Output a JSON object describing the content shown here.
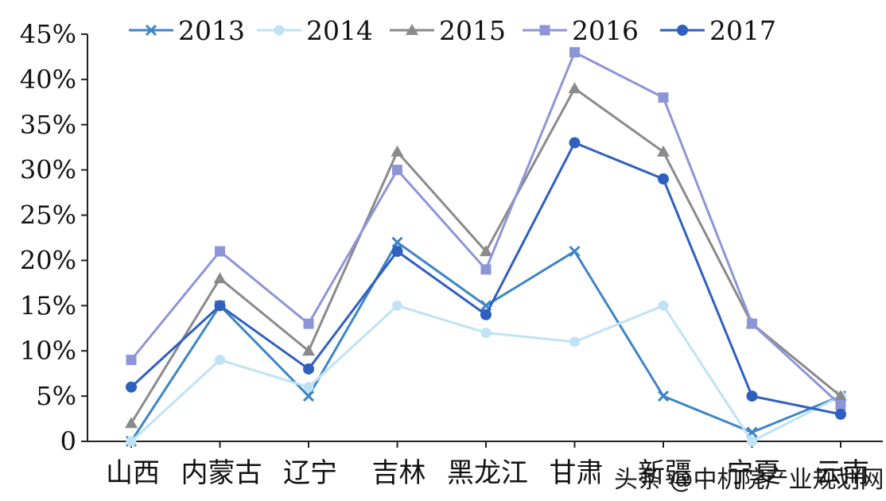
{
  "chart_data": {
    "type": "line",
    "categories": [
      "山西",
      "内蒙古",
      "辽宁",
      "吉林",
      "黑龙江",
      "甘肃",
      "新疆",
      "宁夏",
      "云南"
    ],
    "ylim": [
      0,
      45
    ],
    "yticks": [
      "0",
      "5%",
      "10%",
      "15%",
      "20%",
      "25%",
      "30%",
      "35%",
      "40%",
      "45%"
    ],
    "grid": false,
    "legend_position": "top",
    "series": [
      {
        "name": "2013",
        "marker": "x",
        "color": "#3d85c6",
        "values": [
          0,
          15,
          5,
          22,
          15,
          21,
          5,
          1,
          5
        ]
      },
      {
        "name": "2014",
        "marker": "circle",
        "color": "#bfe3f5",
        "values": [
          0,
          9,
          6,
          15,
          12,
          11,
          15,
          0,
          5
        ]
      },
      {
        "name": "2015",
        "marker": "triangle",
        "color": "#8a8a8a",
        "values": [
          2,
          18,
          10,
          32,
          21,
          39,
          32,
          13,
          5
        ]
      },
      {
        "name": "2016",
        "marker": "square",
        "color": "#8c96d6",
        "values": [
          9,
          21,
          13,
          30,
          19,
          43,
          38,
          13,
          4
        ]
      },
      {
        "name": "2017",
        "marker": "diamond",
        "color": "#2f5fbf",
        "values": [
          6,
          15,
          8,
          21,
          14,
          33,
          29,
          5,
          3
        ]
      }
    ]
  },
  "watermark": "头条 @中机院产业规划网"
}
